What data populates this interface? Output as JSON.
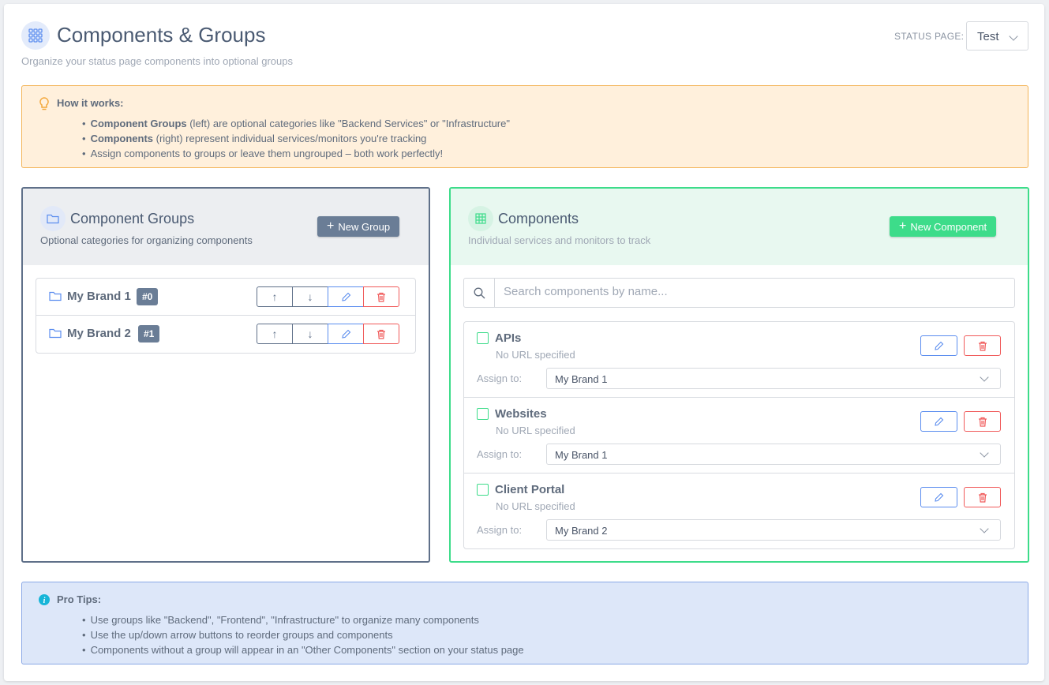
{
  "header": {
    "title": "Components & Groups",
    "subtitle": "Organize your status page components into optional groups",
    "status_page_label": "STATUS PAGE:",
    "status_page_value": "Test",
    "icon": "grid-icon"
  },
  "how_it_works": {
    "title": "How it works:",
    "items": [
      {
        "bold": "Component Groups",
        "text": " (left) are optional categories like \"Backend Services\" or \"Infrastructure\""
      },
      {
        "bold": "Components",
        "text": " (right) represent individual services/monitors you're tracking"
      },
      {
        "bold": "",
        "text": "Assign components to groups or leave them ungrouped – both work perfectly!"
      }
    ]
  },
  "groups_panel": {
    "title": "Component Groups",
    "subtitle": "Optional categories for organizing components",
    "new_button": "New Group",
    "groups": [
      {
        "name": "My Brand 1",
        "badge": "#0"
      },
      {
        "name": "My Brand 2",
        "badge": "#1"
      }
    ]
  },
  "components_panel": {
    "title": "Components",
    "subtitle": "Individual services and monitors to track",
    "new_button": "New Component",
    "search_placeholder": "Search components by name...",
    "assign_label": "Assign to:",
    "components": [
      {
        "name": "APIs",
        "url": "No URL specified",
        "group": "My Brand 1"
      },
      {
        "name": "Websites",
        "url": "No URL specified",
        "group": "My Brand 1"
      },
      {
        "name": "Client Portal",
        "url": "No URL specified",
        "group": "My Brand 2"
      }
    ]
  },
  "pro_tips": {
    "title": "Pro Tips:",
    "items": [
      "Use groups like \"Backend\", \"Frontend\", \"Infrastructure\" to organize many components",
      "Use the up/down arrow buttons to reorder groups and components",
      "Components without a group will appear in an \"Other Components\" section on your status page"
    ]
  },
  "colors": {
    "accent": "#5b8def",
    "green": "#3ddc8a",
    "slate": "#6a7d96",
    "danger": "#f05a5a",
    "warning": "#f3b458"
  }
}
